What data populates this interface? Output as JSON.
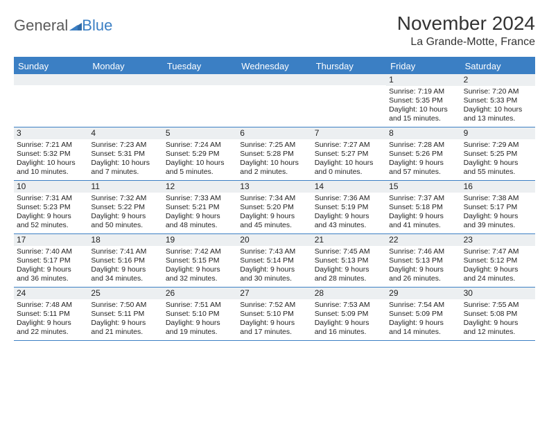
{
  "logo": {
    "word1": "General",
    "word2": "Blue"
  },
  "title": "November 2024",
  "subtitle": "La Grande-Motte, France",
  "header_color": "#3b7fc4",
  "bg_color": "#ffffff",
  "numband_color": "#eceff1",
  "text_color": "#222222",
  "day_names": [
    "Sunday",
    "Monday",
    "Tuesday",
    "Wednesday",
    "Thursday",
    "Friday",
    "Saturday"
  ],
  "weeks": [
    [
      null,
      null,
      null,
      null,
      null,
      {
        "n": "1",
        "sr": "Sunrise: 7:19 AM",
        "ss": "Sunset: 5:35 PM",
        "d1": "Daylight: 10 hours",
        "d2": "and 15 minutes."
      },
      {
        "n": "2",
        "sr": "Sunrise: 7:20 AM",
        "ss": "Sunset: 5:33 PM",
        "d1": "Daylight: 10 hours",
        "d2": "and 13 minutes."
      }
    ],
    [
      {
        "n": "3",
        "sr": "Sunrise: 7:21 AM",
        "ss": "Sunset: 5:32 PM",
        "d1": "Daylight: 10 hours",
        "d2": "and 10 minutes."
      },
      {
        "n": "4",
        "sr": "Sunrise: 7:23 AM",
        "ss": "Sunset: 5:31 PM",
        "d1": "Daylight: 10 hours",
        "d2": "and 7 minutes."
      },
      {
        "n": "5",
        "sr": "Sunrise: 7:24 AM",
        "ss": "Sunset: 5:29 PM",
        "d1": "Daylight: 10 hours",
        "d2": "and 5 minutes."
      },
      {
        "n": "6",
        "sr": "Sunrise: 7:25 AM",
        "ss": "Sunset: 5:28 PM",
        "d1": "Daylight: 10 hours",
        "d2": "and 2 minutes."
      },
      {
        "n": "7",
        "sr": "Sunrise: 7:27 AM",
        "ss": "Sunset: 5:27 PM",
        "d1": "Daylight: 10 hours",
        "d2": "and 0 minutes."
      },
      {
        "n": "8",
        "sr": "Sunrise: 7:28 AM",
        "ss": "Sunset: 5:26 PM",
        "d1": "Daylight: 9 hours",
        "d2": "and 57 minutes."
      },
      {
        "n": "9",
        "sr": "Sunrise: 7:29 AM",
        "ss": "Sunset: 5:25 PM",
        "d1": "Daylight: 9 hours",
        "d2": "and 55 minutes."
      }
    ],
    [
      {
        "n": "10",
        "sr": "Sunrise: 7:31 AM",
        "ss": "Sunset: 5:23 PM",
        "d1": "Daylight: 9 hours",
        "d2": "and 52 minutes."
      },
      {
        "n": "11",
        "sr": "Sunrise: 7:32 AM",
        "ss": "Sunset: 5:22 PM",
        "d1": "Daylight: 9 hours",
        "d2": "and 50 minutes."
      },
      {
        "n": "12",
        "sr": "Sunrise: 7:33 AM",
        "ss": "Sunset: 5:21 PM",
        "d1": "Daylight: 9 hours",
        "d2": "and 48 minutes."
      },
      {
        "n": "13",
        "sr": "Sunrise: 7:34 AM",
        "ss": "Sunset: 5:20 PM",
        "d1": "Daylight: 9 hours",
        "d2": "and 45 minutes."
      },
      {
        "n": "14",
        "sr": "Sunrise: 7:36 AM",
        "ss": "Sunset: 5:19 PM",
        "d1": "Daylight: 9 hours",
        "d2": "and 43 minutes."
      },
      {
        "n": "15",
        "sr": "Sunrise: 7:37 AM",
        "ss": "Sunset: 5:18 PM",
        "d1": "Daylight: 9 hours",
        "d2": "and 41 minutes."
      },
      {
        "n": "16",
        "sr": "Sunrise: 7:38 AM",
        "ss": "Sunset: 5:17 PM",
        "d1": "Daylight: 9 hours",
        "d2": "and 39 minutes."
      }
    ],
    [
      {
        "n": "17",
        "sr": "Sunrise: 7:40 AM",
        "ss": "Sunset: 5:17 PM",
        "d1": "Daylight: 9 hours",
        "d2": "and 36 minutes."
      },
      {
        "n": "18",
        "sr": "Sunrise: 7:41 AM",
        "ss": "Sunset: 5:16 PM",
        "d1": "Daylight: 9 hours",
        "d2": "and 34 minutes."
      },
      {
        "n": "19",
        "sr": "Sunrise: 7:42 AM",
        "ss": "Sunset: 5:15 PM",
        "d1": "Daylight: 9 hours",
        "d2": "and 32 minutes."
      },
      {
        "n": "20",
        "sr": "Sunrise: 7:43 AM",
        "ss": "Sunset: 5:14 PM",
        "d1": "Daylight: 9 hours",
        "d2": "and 30 minutes."
      },
      {
        "n": "21",
        "sr": "Sunrise: 7:45 AM",
        "ss": "Sunset: 5:13 PM",
        "d1": "Daylight: 9 hours",
        "d2": "and 28 minutes."
      },
      {
        "n": "22",
        "sr": "Sunrise: 7:46 AM",
        "ss": "Sunset: 5:13 PM",
        "d1": "Daylight: 9 hours",
        "d2": "and 26 minutes."
      },
      {
        "n": "23",
        "sr": "Sunrise: 7:47 AM",
        "ss": "Sunset: 5:12 PM",
        "d1": "Daylight: 9 hours",
        "d2": "and 24 minutes."
      }
    ],
    [
      {
        "n": "24",
        "sr": "Sunrise: 7:48 AM",
        "ss": "Sunset: 5:11 PM",
        "d1": "Daylight: 9 hours",
        "d2": "and 22 minutes."
      },
      {
        "n": "25",
        "sr": "Sunrise: 7:50 AM",
        "ss": "Sunset: 5:11 PM",
        "d1": "Daylight: 9 hours",
        "d2": "and 21 minutes."
      },
      {
        "n": "26",
        "sr": "Sunrise: 7:51 AM",
        "ss": "Sunset: 5:10 PM",
        "d1": "Daylight: 9 hours",
        "d2": "and 19 minutes."
      },
      {
        "n": "27",
        "sr": "Sunrise: 7:52 AM",
        "ss": "Sunset: 5:10 PM",
        "d1": "Daylight: 9 hours",
        "d2": "and 17 minutes."
      },
      {
        "n": "28",
        "sr": "Sunrise: 7:53 AM",
        "ss": "Sunset: 5:09 PM",
        "d1": "Daylight: 9 hours",
        "d2": "and 16 minutes."
      },
      {
        "n": "29",
        "sr": "Sunrise: 7:54 AM",
        "ss": "Sunset: 5:09 PM",
        "d1": "Daylight: 9 hours",
        "d2": "and 14 minutes."
      },
      {
        "n": "30",
        "sr": "Sunrise: 7:55 AM",
        "ss": "Sunset: 5:08 PM",
        "d1": "Daylight: 9 hours",
        "d2": "and 12 minutes."
      }
    ]
  ]
}
